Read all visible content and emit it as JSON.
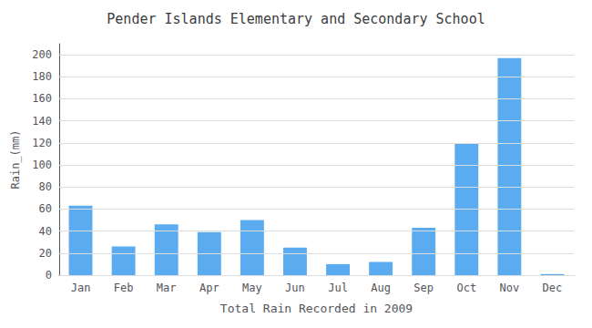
{
  "chart_data": {
    "type": "bar",
    "title": "Pender Islands Elementary and Secondary School",
    "xlabel": "Total Rain Recorded in 2009",
    "ylabel": "Rain_(mm)",
    "categories": [
      "Jan",
      "Feb",
      "Mar",
      "Apr",
      "May",
      "Jun",
      "Jul",
      "Aug",
      "Sep",
      "Oct",
      "Nov",
      "Dec"
    ],
    "values": [
      63,
      26,
      46,
      39,
      50,
      25,
      10,
      12,
      43,
      119,
      197,
      1
    ],
    "color": "#5aabf0",
    "ylim": [
      0,
      210
    ],
    "yticks": [
      0,
      20,
      40,
      60,
      80,
      100,
      120,
      140,
      160,
      180,
      200
    ],
    "grid": true
  }
}
